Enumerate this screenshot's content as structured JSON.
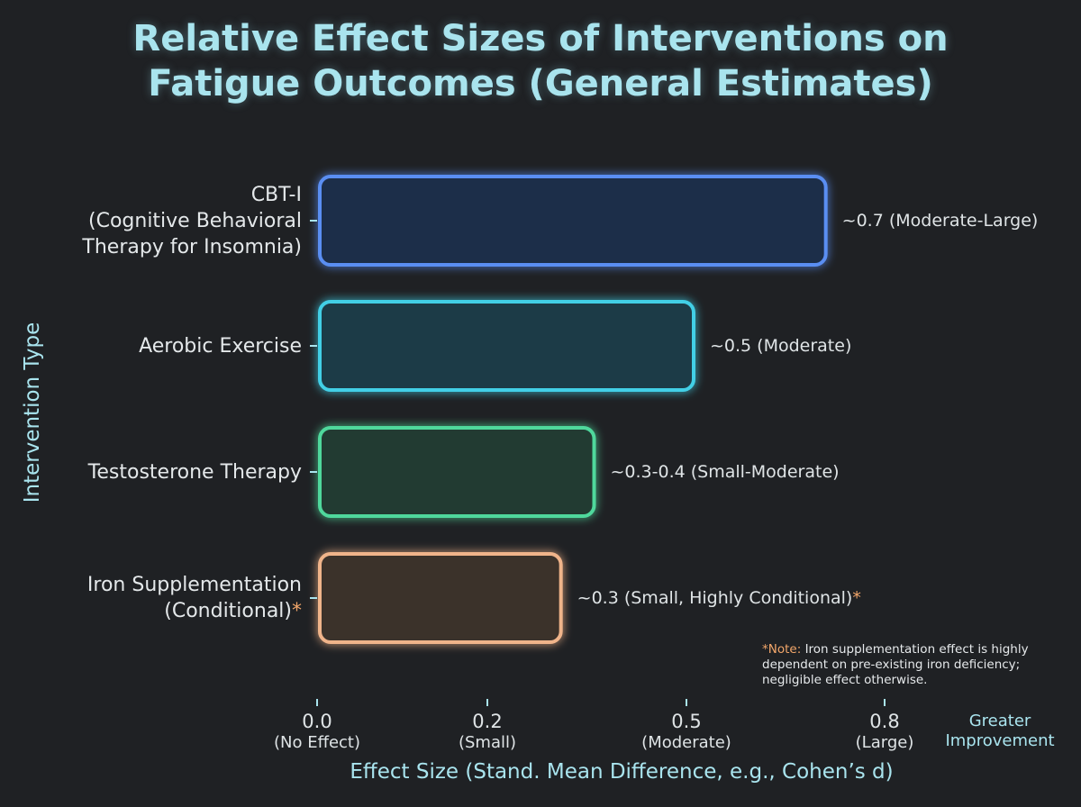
{
  "title_lines": [
    "Relative Effect Sizes of Interventions on",
    "Fatigue Outcomes (General Estimates)"
  ],
  "chart_data": {
    "type": "bar",
    "orientation": "horizontal",
    "title": "Relative Effect Sizes of Interventions on Fatigue Outcomes (General Estimates)",
    "xlabel": "Effect Size (Stand. Mean Difference, e.g., Cohen’s d)",
    "ylabel": "Intervention Type",
    "x_direction_label": "Greater Improvement",
    "xlim": [
      0,
      0.8
    ],
    "x_ticks": [
      {
        "value": 0.0,
        "label": "0.0",
        "desc": "(No Effect)"
      },
      {
        "value": 0.2,
        "label": "0.2",
        "desc": "(Small)"
      },
      {
        "value": 0.5,
        "label": "0.5",
        "desc": "(Moderate)"
      },
      {
        "value": 0.8,
        "label": "0.8",
        "desc": "(Large)"
      }
    ],
    "grid": false,
    "categories": [
      {
        "lines": [
          "CBT-I",
          "(Cognitive Behavioral",
          "Therapy for Insomnia)"
        ],
        "asterisk": ""
      },
      {
        "lines": [
          "Aerobic Exercise"
        ],
        "asterisk": ""
      },
      {
        "lines": [
          "Testosterone Therapy"
        ],
        "asterisk": ""
      },
      {
        "lines": [
          "Iron Supplementation",
          "(Conditional)"
        ],
        "asterisk": "*"
      }
    ],
    "values": [
      0.7,
      0.5,
      0.35,
      0.3
    ],
    "value_labels": [
      {
        "text": "~0.7 (Moderate-Large)",
        "asterisk": ""
      },
      {
        "text": "~0.5 (Moderate)",
        "asterisk": ""
      },
      {
        "text": "~0.3-0.4 (Small-Moderate)",
        "asterisk": ""
      },
      {
        "text": "~0.3 (Small, Highly Conditional)",
        "asterisk": "*"
      }
    ],
    "colors": [
      "#5a8ef2",
      "#42cfe6",
      "#4fd89c",
      "#f0b48a"
    ],
    "fills": [
      "#1e2d4a",
      "#1d3a46",
      "#213a33",
      "#3a322b"
    ]
  },
  "note": {
    "head": "*Note:",
    "text": "Iron supplementation effect is highly dependent on pre-existing iron deficiency; negligible effect otherwise."
  }
}
